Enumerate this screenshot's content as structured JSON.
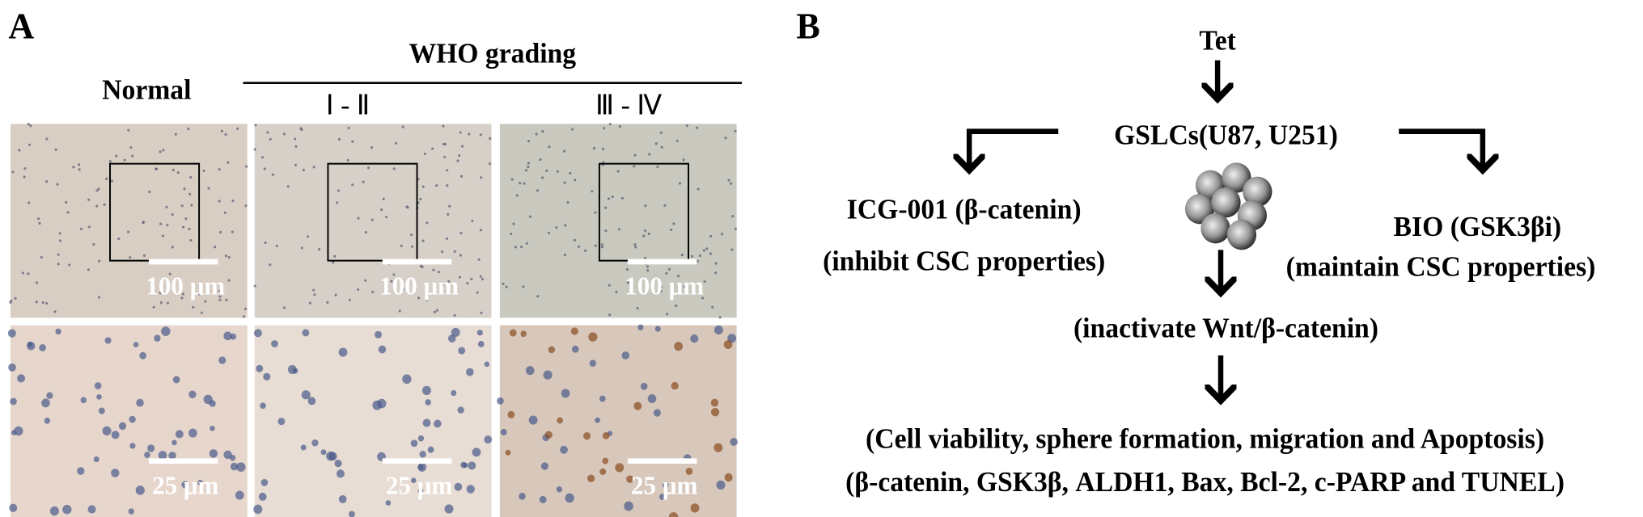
{
  "panel_a": {
    "label": "A",
    "group_header": "WHO grading",
    "columns": [
      "Normal",
      "Ⅰ - Ⅱ",
      "Ⅲ - Ⅳ"
    ],
    "scale_bars_top": [
      "100 μm",
      "100 μm",
      "100 μm"
    ],
    "scale_bars_bottom": [
      "25 μm",
      "25 μm",
      "25 μm"
    ]
  },
  "panel_b": {
    "label": "B",
    "nodes": [
      "Tet",
      "GSLCs(U87, U251)",
      "ICG-001 (β-catenin)",
      "(inhibit CSC properties)",
      "BIO (GSK3βi)",
      "(maintain CSC properties)",
      "(inactivate Wnt/β-catenin)",
      "(Cell viability, sphere formation, migration and Apoptosis)",
      "(β-catenin, GSK3β, ALDH1, Bax, Bcl-2, c-PARP and TUNEL)"
    ]
  }
}
